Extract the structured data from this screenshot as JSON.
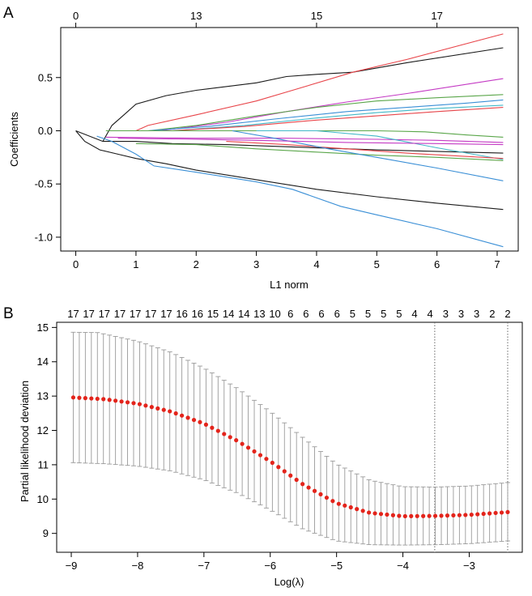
{
  "colors": {
    "axis": "#000000",
    "grid_vline": "#666666",
    "errorbar": "#9a9a9a",
    "point": "#e3241b",
    "path_black": "#1a1a1a",
    "path_red": "#e8454a",
    "path_blue": "#3a8fd6",
    "path_green": "#5aa64a",
    "path_magenta": "#c43ac4",
    "path_cyan": "#42b8c8"
  },
  "chart_data": [
    {
      "panel": "A",
      "type": "line",
      "xlabel": "L1 norm",
      "ylabel": "Coefficients",
      "xlim": [
        -0.25,
        7.35
      ],
      "ylim": [
        -1.13,
        0.97
      ],
      "x_ticks": [
        0,
        1,
        2,
        3,
        4,
        5,
        6,
        7
      ],
      "y_ticks": [
        -1.0,
        -0.5,
        0.0,
        0.5
      ],
      "y_tick_labels": [
        "-1.0",
        "-0.5",
        "0.0",
        "0.5"
      ],
      "top_ticks": [
        {
          "x": 0,
          "label": "0"
        },
        {
          "x": 2.0,
          "label": "13"
        },
        {
          "x": 4.0,
          "label": "15"
        },
        {
          "x": 6.0,
          "label": "17"
        }
      ],
      "series": [
        {
          "name": "coef-1",
          "color": "path_black",
          "points": [
            [
              0,
              0
            ],
            [
              0.45,
              -0.1
            ],
            [
              1.0,
              -0.1
            ],
            [
              1.6,
              -0.12
            ],
            [
              2.5,
              -0.13
            ],
            [
              3.5,
              -0.15
            ],
            [
              5.0,
              -0.18
            ],
            [
              7.1,
              -0.21
            ]
          ]
        },
        {
          "name": "coef-2",
          "color": "path_black",
          "points": [
            [
              0.45,
              -0.1
            ],
            [
              0.6,
              0.05
            ],
            [
              0.8,
              0.15
            ],
            [
              1.0,
              0.25
            ],
            [
              1.5,
              0.33
            ],
            [
              2.0,
              0.38
            ],
            [
              3.0,
              0.45
            ],
            [
              3.5,
              0.51
            ],
            [
              4.0,
              0.53
            ],
            [
              4.6,
              0.55
            ],
            [
              5.5,
              0.64
            ],
            [
              7.1,
              0.78
            ]
          ]
        },
        {
          "name": "coef-3",
          "color": "path_black",
          "points": [
            [
              0,
              0
            ],
            [
              0.15,
              -0.1
            ],
            [
              0.4,
              -0.18
            ],
            [
              0.7,
              -0.22
            ],
            [
              1.0,
              -0.26
            ],
            [
              1.5,
              -0.31
            ],
            [
              2.0,
              -0.37
            ],
            [
              3.0,
              -0.46
            ],
            [
              4.0,
              -0.55
            ],
            [
              5.0,
              -0.62
            ],
            [
              6.0,
              -0.68
            ],
            [
              7.1,
              -0.74
            ]
          ]
        },
        {
          "name": "coef-4",
          "color": "path_red",
          "points": [
            [
              1.0,
              0.0
            ],
            [
              1.2,
              0.05
            ],
            [
              2.0,
              0.15
            ],
            [
              3.0,
              0.28
            ],
            [
              3.6,
              0.38
            ],
            [
              4.6,
              0.55
            ],
            [
              5.5,
              0.67
            ],
            [
              7.1,
              0.91
            ]
          ]
        },
        {
          "name": "coef-5",
          "color": "path_magenta",
          "points": [
            [
              1.4,
              0.0
            ],
            [
              2.5,
              0.08
            ],
            [
              3.5,
              0.18
            ],
            [
              4.5,
              0.27
            ],
            [
              5.5,
              0.35
            ],
            [
              7.1,
              0.49
            ]
          ]
        },
        {
          "name": "coef-6",
          "color": "path_green",
          "points": [
            [
              1.2,
              0.0
            ],
            [
              2.0,
              0.05
            ],
            [
              3.0,
              0.14
            ],
            [
              4.0,
              0.22
            ],
            [
              5.0,
              0.28
            ],
            [
              6.0,
              0.31
            ],
            [
              7.1,
              0.34
            ]
          ]
        },
        {
          "name": "coef-7",
          "color": "path_blue",
          "points": [
            [
              1.2,
              0.0
            ],
            [
              2.2,
              0.04
            ],
            [
              3.3,
              0.11
            ],
            [
              4.5,
              0.18
            ],
            [
              5.5,
              0.22
            ],
            [
              6.5,
              0.26
            ],
            [
              7.1,
              0.29
            ]
          ]
        },
        {
          "name": "coef-8",
          "color": "path_cyan",
          "points": [
            [
              1.6,
              0.0
            ],
            [
              2.8,
              0.05
            ],
            [
              4.0,
              0.12
            ],
            [
              5.0,
              0.17
            ],
            [
              6.0,
              0.21
            ],
            [
              7.1,
              0.24
            ]
          ]
        },
        {
          "name": "coef-9",
          "color": "path_red",
          "points": [
            [
              1.6,
              0.0
            ],
            [
              2.8,
              0.04
            ],
            [
              4.0,
              0.1
            ],
            [
              5.0,
              0.14
            ],
            [
              6.0,
              0.18
            ],
            [
              7.1,
              0.22
            ]
          ]
        },
        {
          "name": "coef-10",
          "color": "path_green",
          "points": [
            [
              0.5,
              0.0
            ],
            [
              3.5,
              0.0
            ],
            [
              5.0,
              0.0
            ],
            [
              5.8,
              -0.01
            ],
            [
              6.5,
              -0.04
            ],
            [
              7.1,
              -0.06
            ]
          ]
        },
        {
          "name": "coef-11",
          "color": "path_magenta",
          "points": [
            [
              0.5,
              -0.06
            ],
            [
              2.0,
              -0.07
            ],
            [
              3.5,
              -0.07
            ],
            [
              5.0,
              -0.08
            ],
            [
              6.0,
              -0.09
            ],
            [
              7.1,
              -0.11
            ]
          ]
        },
        {
          "name": "coef-12",
          "color": "path_cyan",
          "points": [
            [
              3.0,
              0.0
            ],
            [
              4.0,
              0.0
            ],
            [
              5.0,
              -0.05
            ],
            [
              6.0,
              -0.16
            ],
            [
              7.1,
              -0.27
            ]
          ]
        },
        {
          "name": "coef-13",
          "color": "path_green",
          "points": [
            [
              1.0,
              -0.12
            ],
            [
              2.0,
              -0.13
            ],
            [
              3.0,
              -0.17
            ],
            [
              4.0,
              -0.2
            ],
            [
              5.0,
              -0.23
            ],
            [
              6.0,
              -0.25
            ],
            [
              7.1,
              -0.28
            ]
          ]
        },
        {
          "name": "coef-14",
          "color": "path_red",
          "points": [
            [
              2.5,
              -0.1
            ],
            [
              3.5,
              -0.13
            ],
            [
              4.5,
              -0.17
            ],
            [
              5.5,
              -0.21
            ],
            [
              7.1,
              -0.26
            ]
          ]
        },
        {
          "name": "coef-15",
          "color": "path_blue",
          "points": [
            [
              2.6,
              0.0
            ],
            [
              3.3,
              -0.07
            ],
            [
              4.2,
              -0.17
            ],
            [
              5.0,
              -0.25
            ],
            [
              6.0,
              -0.35
            ],
            [
              7.1,
              -0.47
            ]
          ]
        },
        {
          "name": "coef-16",
          "color": "path_blue",
          "points": [
            [
              0.35,
              -0.05
            ],
            [
              0.6,
              -0.1
            ],
            [
              1.0,
              -0.22
            ],
            [
              1.3,
              -0.33
            ],
            [
              2.0,
              -0.39
            ],
            [
              3.0,
              -0.48
            ],
            [
              3.6,
              -0.55
            ],
            [
              4.4,
              -0.71
            ],
            [
              5.0,
              -0.79
            ],
            [
              6.0,
              -0.92
            ],
            [
              7.1,
              -1.09
            ]
          ]
        },
        {
          "name": "coef-17",
          "color": "path_magenta",
          "points": [
            [
              0.7,
              -0.07
            ],
            [
              2.0,
              -0.08
            ],
            [
              3.0,
              -0.09
            ],
            [
              4.5,
              -0.11
            ],
            [
              6.0,
              -0.12
            ],
            [
              7.1,
              -0.13
            ]
          ]
        }
      ]
    },
    {
      "panel": "B",
      "type": "scatter",
      "xlabel": "Log(λ)",
      "ylabel": "Partial likelihood deviation",
      "xlim": [
        -9.22,
        -2.2
      ],
      "ylim": [
        8.45,
        15.15
      ],
      "x_ticks": [
        -9,
        -8,
        -7,
        -6,
        -5,
        -4,
        -3
      ],
      "x_tick_labels": [
        "−9",
        "−8",
        "−7",
        "−6",
        "−5",
        "−4",
        "−3"
      ],
      "y_ticks": [
        9,
        10,
        11,
        12,
        13,
        14,
        15
      ],
      "top_count_labels": [
        "17",
        "17",
        "17",
        "17",
        "17",
        "17",
        "17",
        "16",
        "16",
        "15",
        "14",
        "14",
        "13",
        "10",
        "6",
        "6",
        "6",
        "6",
        "5",
        "5",
        "5",
        "5",
        "4",
        "4",
        "3",
        "3",
        "3",
        "2",
        "2"
      ],
      "vertical_lines": [
        -3.52,
        -2.42
      ],
      "cv_curve": {
        "log_lambda_start": -8.97,
        "log_lambda_end": -2.42,
        "num_points": 73,
        "mean_points": [
          [
            -8.97,
            12.96
          ],
          [
            -8.5,
            12.91
          ],
          [
            -8.0,
            12.78
          ],
          [
            -7.5,
            12.55
          ],
          [
            -7.0,
            12.2
          ],
          [
            -6.5,
            11.7
          ],
          [
            -6.0,
            11.1
          ],
          [
            -5.5,
            10.42
          ],
          [
            -5.0,
            9.88
          ],
          [
            -4.5,
            9.6
          ],
          [
            -4.0,
            9.5
          ],
          [
            -3.5,
            9.51
          ],
          [
            -3.0,
            9.54
          ],
          [
            -2.42,
            9.62
          ]
        ],
        "upper_points": [
          [
            -8.97,
            14.86
          ],
          [
            -8.6,
            14.85
          ],
          [
            -8.0,
            14.6
          ],
          [
            -7.5,
            14.28
          ],
          [
            -7.0,
            13.82
          ],
          [
            -6.5,
            13.23
          ],
          [
            -6.0,
            12.55
          ],
          [
            -5.5,
            11.78
          ],
          [
            -5.0,
            11.02
          ],
          [
            -4.5,
            10.55
          ],
          [
            -4.0,
            10.36
          ],
          [
            -3.5,
            10.35
          ],
          [
            -3.0,
            10.38
          ],
          [
            -2.42,
            10.48
          ]
        ],
        "lower_points": [
          [
            -8.97,
            11.06
          ],
          [
            -8.5,
            11.03
          ],
          [
            -8.0,
            10.96
          ],
          [
            -7.5,
            10.82
          ],
          [
            -7.0,
            10.56
          ],
          [
            -6.5,
            10.18
          ],
          [
            -6.0,
            9.68
          ],
          [
            -5.5,
            9.12
          ],
          [
            -5.0,
            8.78
          ],
          [
            -4.5,
            8.67
          ],
          [
            -4.0,
            8.66
          ],
          [
            -3.5,
            8.67
          ],
          [
            -3.0,
            8.7
          ],
          [
            -2.42,
            8.78
          ]
        ]
      }
    }
  ],
  "panels": {
    "a": {
      "letter": "A"
    },
    "b": {
      "letter": "B"
    }
  }
}
